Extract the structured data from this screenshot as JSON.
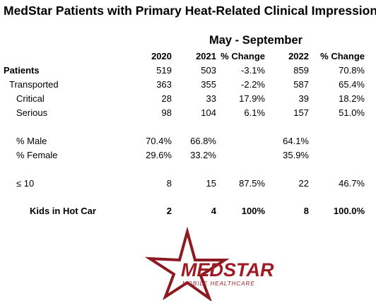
{
  "title": "MedStar Patients with Primary Heat-Related Clinical Impression",
  "period": "May - September",
  "table": {
    "columns": [
      "2020",
      "2021",
      "% Change",
      "2022",
      "% Change"
    ],
    "rows": [
      {
        "label": "Patients",
        "cells": [
          "519",
          "503",
          "-3.1%",
          "859",
          "70.8%"
        ]
      },
      {
        "label": "Transported",
        "cells": [
          "363",
          "355",
          "-2.2%",
          "587",
          "65.4%"
        ]
      },
      {
        "label": "Critical",
        "cells": [
          "28",
          "33",
          "17.9%",
          "39",
          "18.2%"
        ]
      },
      {
        "label": "Serious",
        "cells": [
          "98",
          "104",
          "6.1%",
          "157",
          "51.0%"
        ]
      },
      {
        "label": "% Male",
        "cells": [
          "70.4%",
          "66.8%",
          null,
          "64.1%",
          null
        ]
      },
      {
        "label": "% Female",
        "cells": [
          "29.6%",
          "33.2%",
          null,
          "35.9%",
          null
        ]
      },
      {
        "label": "≤ 10",
        "cells": [
          "8",
          "15",
          "87.5%",
          "22",
          "46.7%"
        ]
      },
      {
        "label": "Kids in Hot Car",
        "cells": [
          "2",
          "4",
          "100%",
          "8",
          "100.0%"
        ]
      }
    ]
  },
  "logo": {
    "name": "MEDSTAR",
    "tagline": "MOBILE HEALTHCARE"
  }
}
